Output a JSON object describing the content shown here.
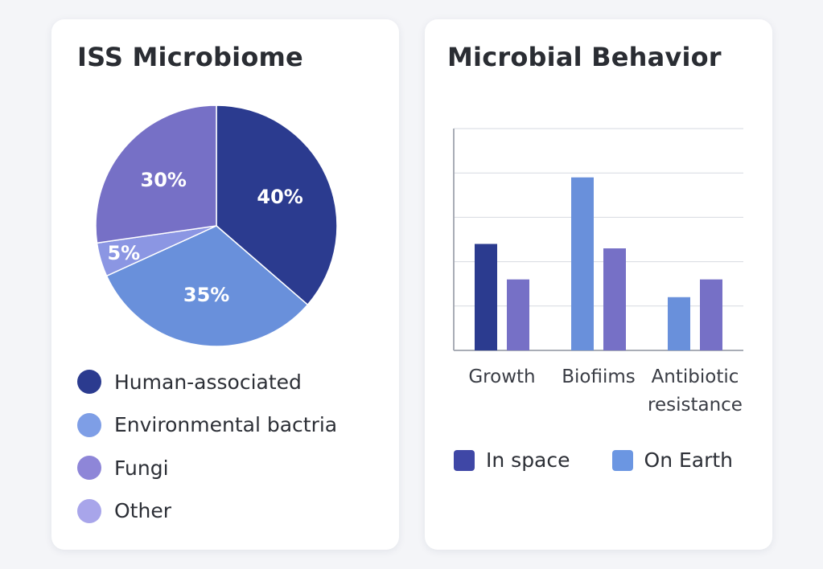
{
  "chart_data": [
    {
      "type": "pie",
      "title": "ISS Microbiome",
      "slices": [
        {
          "label": "Human-associated",
          "value": 40,
          "display": "40%",
          "color": "#2b3b8f"
        },
        {
          "label": "Environmental bactria",
          "value": 35,
          "display": "35%",
          "color": "#6990db"
        },
        {
          "label": "Other",
          "value": 5,
          "display": "5%",
          "color": "#8b96e3"
        },
        {
          "label": "Fungi",
          "value": 30,
          "display": "30%",
          "color": "#7670c6"
        }
      ],
      "legend": [
        {
          "label": "Human-associated",
          "color": "#2b3b8f"
        },
        {
          "label": "Environmental bactria",
          "color": "#7e9ee6"
        },
        {
          "label": "Fungi",
          "color": "#8e86d8"
        },
        {
          "label": "Other",
          "color": "#a8a5ea"
        }
      ],
      "legend_position": "bottom"
    },
    {
      "type": "bar",
      "title": "Microbial Behavior",
      "categories": [
        "Growth",
        "Biofiims",
        "Antibiotic\nresistance"
      ],
      "series": [
        {
          "name": "In space",
          "values": [
            2.4,
            3.9,
            1.2
          ]
        },
        {
          "name": "On Earth",
          "values": [
            1.6,
            2.3,
            1.6
          ]
        }
      ],
      "bar_colors": [
        [
          "#2b3b8f",
          "#7670c6"
        ],
        [
          "#6990db",
          "#7670c6"
        ],
        [
          "#6990db",
          "#7670c6"
        ]
      ],
      "ylim": [
        0,
        5
      ],
      "grid": true,
      "xlabel": "",
      "ylabel": "",
      "legend": [
        {
          "label": "In space",
          "color": "#3f47a6"
        },
        {
          "label": "On Earth",
          "color": "#6b96e2"
        }
      ],
      "legend_position": "bottom"
    }
  ]
}
